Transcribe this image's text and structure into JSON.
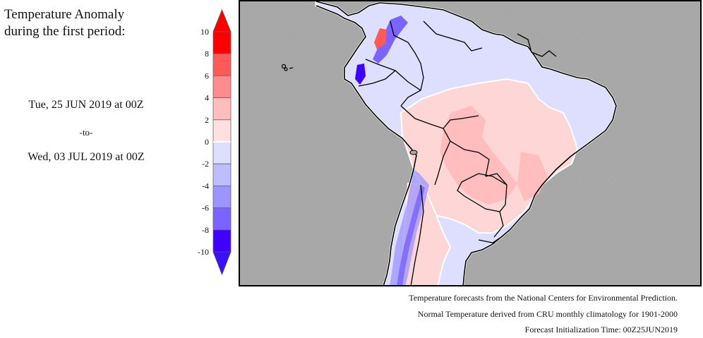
{
  "title": {
    "line1": "Temperature Anomaly",
    "line2": "during the first period:"
  },
  "period": {
    "start": "Tue, 25 JUN 2019 at 00Z",
    "separator": "-to-",
    "end": "Wed, 03 JUL 2019 at 00Z"
  },
  "colorbar": {
    "ticks": [
      "10",
      "8",
      "6",
      "4",
      "2",
      "0",
      "-2",
      "-4",
      "-6",
      "-8",
      "-10"
    ],
    "bins": [
      {
        "from": 8,
        "to": 10,
        "color": "#ff0000"
      },
      {
        "from": 6,
        "to": 8,
        "color": "#ff5a5a"
      },
      {
        "from": 4,
        "to": 6,
        "color": "#ff8c8c"
      },
      {
        "from": 2,
        "to": 4,
        "color": "#ffbdbd"
      },
      {
        "from": 0,
        "to": 2,
        "color": "#ffe0e0"
      },
      {
        "from": -2,
        "to": 0,
        "color": "#dedeff"
      },
      {
        "from": -4,
        "to": -2,
        "color": "#bdbdff"
      },
      {
        "from": -6,
        "to": -4,
        "color": "#9c94ff"
      },
      {
        "from": -8,
        "to": -6,
        "color": "#7a63ff"
      },
      {
        "from": -10,
        "to": -8,
        "color": "#4000ff"
      }
    ],
    "over_color": "#ff0000",
    "under_color": "#3a10ff"
  },
  "map": {
    "ocean_color": "#a8a8a8",
    "border_color": "#000000"
  },
  "footer": {
    "line1": "Temperature forecasts from the National Centers for Environmental Prediction.",
    "line2": "Normal Temperature derived from CRU monthly climatology for 1901-2000",
    "line3": "Forecast Initialization Time: 00Z25JUN2019"
  }
}
